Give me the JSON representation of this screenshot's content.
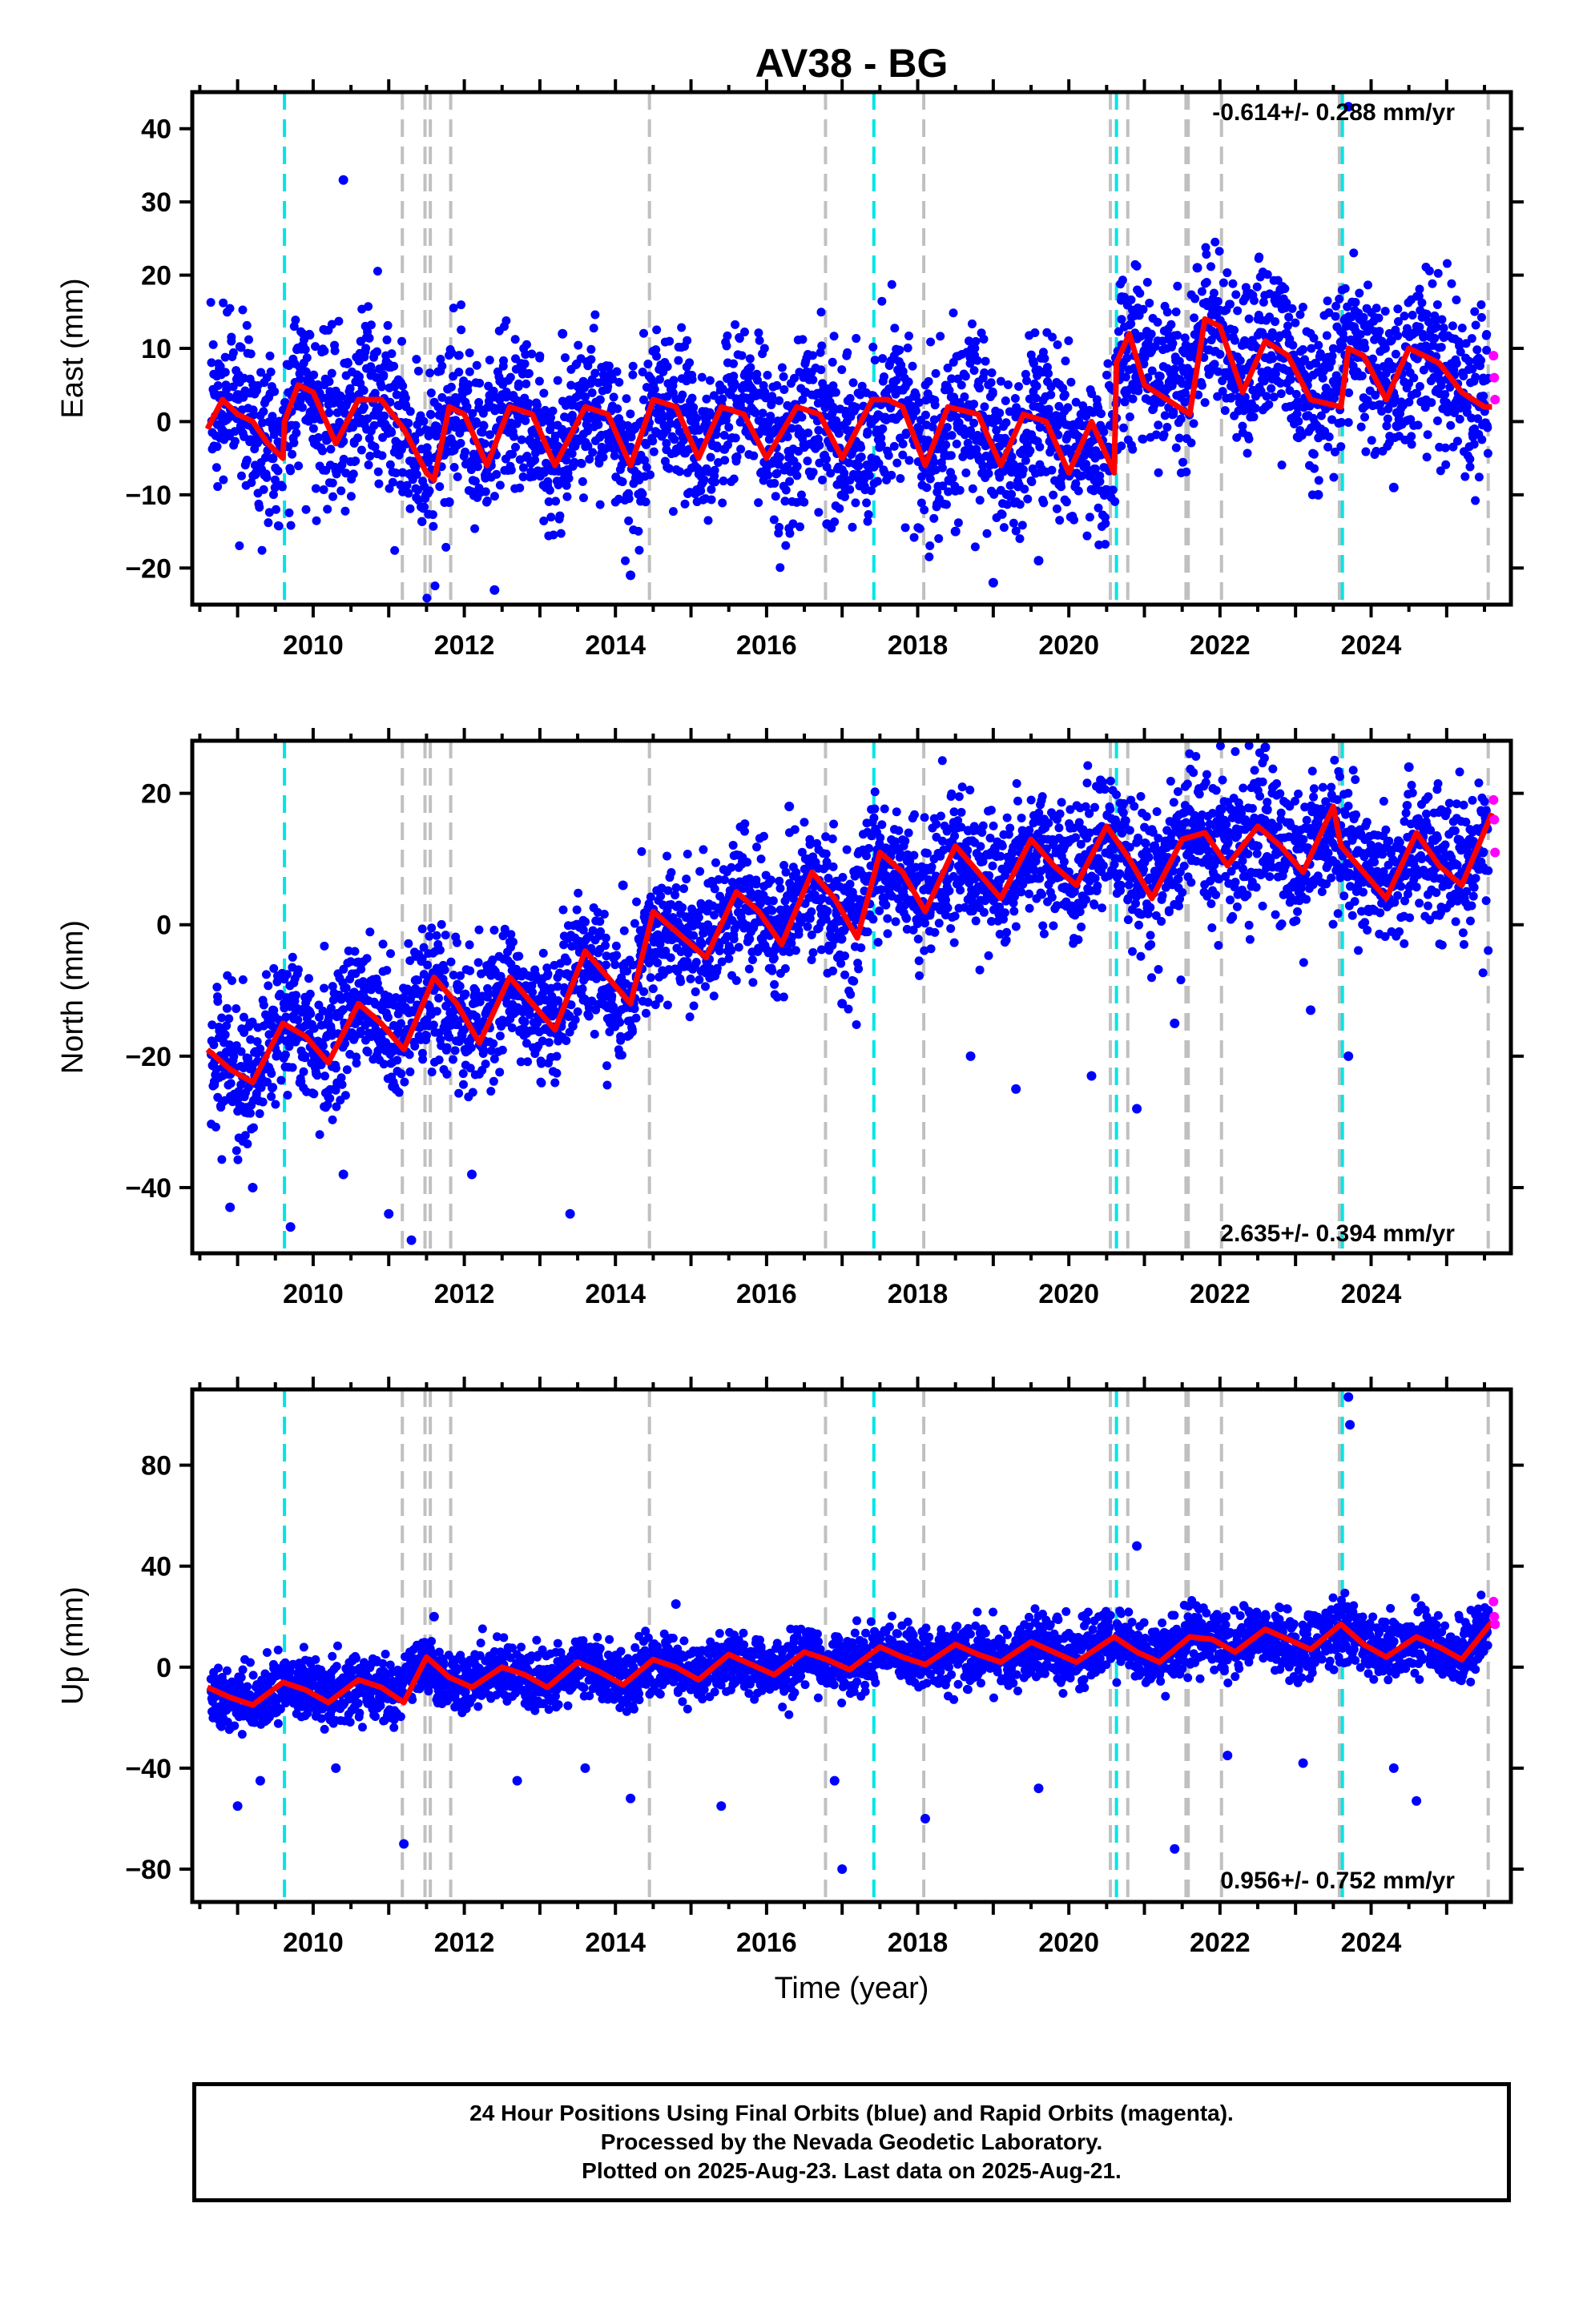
{
  "title": "AV38 - BG",
  "xlabel": "Time (year)",
  "colors": {
    "final_points": "#0000ff",
    "rapid_points": "#ff00ff",
    "model_line": "#ff0000",
    "antenna_change": "#00e5e5",
    "equipment_change": "#c0c0c0"
  },
  "events": {
    "cyan": [
      2009.62,
      2017.42,
      2020.63,
      2023.62
    ],
    "gray": [
      2011.18,
      2011.48,
      2011.55,
      2011.82,
      2014.45,
      2016.78,
      2018.08,
      2020.55,
      2020.78,
      2021.55,
      2021.58,
      2022.02,
      2023.58,
      2025.55
    ]
  },
  "footer": {
    "line1": "24 Hour Positions Using Final Orbits (blue) and Rapid Orbits (magenta).",
    "line2": "Processed by the Nevada Geodetic Laboratory.",
    "line3": "Plotted on 2025-Aug-23. Last data on 2025-Aug-21."
  },
  "chart_data": [
    {
      "type": "scatter",
      "component": "east",
      "ylabel": "East (mm)",
      "rate_text": "-0.614+/- 0.288 mm/yr",
      "xlim": [
        2008.4,
        2025.85
      ],
      "ylim": [
        -25,
        45
      ],
      "yticks": [
        -20,
        -10,
        0,
        10,
        20,
        30,
        40
      ],
      "xticks": [
        2010,
        2012,
        2014,
        2016,
        2018,
        2020,
        2022,
        2024
      ],
      "trend_mm_per_yr": -0.614,
      "seasonal_amplitude_mm": 4.5,
      "model": {
        "x": [
          2008.6,
          2008.8,
          2009.0,
          2009.2,
          2009.4,
          2009.6,
          2009.62,
          2009.8,
          2010.0,
          2010.3,
          2010.6,
          2010.9,
          2011.2,
          2011.5,
          2011.6,
          2011.8,
          2012.0,
          2012.3,
          2012.6,
          2012.9,
          2013.2,
          2013.6,
          2013.9,
          2014.2,
          2014.5,
          2014.8,
          2015.1,
          2015.4,
          2015.7,
          2016.0,
          2016.4,
          2016.7,
          2017.0,
          2017.4,
          2017.6,
          2017.8,
          2018.1,
          2018.4,
          2018.8,
          2019.1,
          2019.4,
          2019.7,
          2020.0,
          2020.3,
          2020.6,
          2020.63,
          2020.8,
          2021.0,
          2021.3,
          2021.6,
          2021.8,
          2022.0,
          2022.3,
          2022.6,
          2022.9,
          2023.2,
          2023.6,
          2023.7,
          2023.9,
          2024.2,
          2024.5,
          2024.9,
          2025.2,
          2025.5,
          2025.6
        ],
        "y": [
          -1,
          3,
          1,
          0,
          -3,
          -5,
          0,
          5,
          4,
          -3,
          3,
          3,
          -1,
          -7,
          -8,
          2,
          1,
          -6,
          2,
          1,
          -6,
          2,
          1,
          -6,
          3,
          2,
          -5,
          2,
          1,
          -5,
          2,
          1,
          -5,
          3,
          3,
          2,
          -6,
          2,
          1,
          -6,
          1,
          0,
          -7,
          0,
          -7,
          8,
          12,
          5,
          3,
          1,
          14,
          13,
          4,
          11,
          9,
          3,
          2,
          10,
          9,
          3,
          10,
          8,
          4,
          2,
          2
        ]
      },
      "final_points": {
        "x": [
          2008.7,
          2008.9,
          2009.1,
          2009.3,
          2009.5,
          2009.7,
          2009.9,
          2010.1,
          2010.3,
          2010.5,
          2010.7,
          2010.9,
          2011.1,
          2011.3,
          2011.5,
          2011.7,
          2011.9,
          2012.1,
          2012.3,
          2012.5,
          2012.7,
          2012.9,
          2013.1,
          2013.3,
          2013.5,
          2013.7,
          2013.9,
          2014.1,
          2014.3,
          2014.5,
          2014.7,
          2014.9,
          2015.1,
          2015.3,
          2015.5,
          2015.7,
          2015.9,
          2016.1,
          2016.3,
          2016.5,
          2016.7,
          2016.9,
          2017.1,
          2017.3,
          2017.5,
          2017.7,
          2017.9,
          2018.1,
          2018.3,
          2018.5,
          2018.7,
          2018.9,
          2019.1,
          2019.3,
          2019.5,
          2019.7,
          2019.9,
          2020.1,
          2020.3,
          2020.5,
          2020.7,
          2020.9,
          2021.1,
          2021.3,
          2021.5,
          2021.7,
          2021.9,
          2022.1,
          2022.3,
          2022.5,
          2022.7,
          2022.9,
          2023.1,
          2023.3,
          2023.5,
          2023.7,
          2023.9,
          2024.1,
          2024.3,
          2024.5,
          2024.7,
          2024.9,
          2025.1,
          2025.3,
          2025.5
        ],
        "y": [
          2,
          3,
          1,
          -2,
          -4,
          3,
          5,
          3,
          -1,
          0,
          4,
          3,
          1,
          -4,
          -7,
          0,
          2,
          -2,
          -4,
          2,
          3,
          1,
          -3,
          -5,
          0,
          2,
          1,
          -4,
          -5,
          2,
          3,
          1,
          -3,
          -4,
          1,
          2,
          1,
          -3,
          -5,
          1,
          2,
          0,
          -3,
          -4,
          2,
          3,
          1,
          -4,
          -5,
          1,
          1,
          -1,
          -5,
          -6,
          0,
          1,
          -1,
          -4,
          -6,
          -6,
          9,
          10,
          6,
          4,
          2,
          12,
          13,
          9,
          5,
          8,
          10,
          8,
          5,
          3,
          6,
          10,
          9,
          7,
          4,
          6,
          9,
          9,
          6,
          3,
          3
        ],
        "outliers_x": [
          2010.4,
          2011.8,
          2012.4,
          2013.3,
          2014.2,
          2016.8,
          2018.5,
          2019.0,
          2019.6,
          2020.7,
          2021.7,
          2022.8,
          2023.3,
          2023.7,
          2024.3
        ],
        "outliers_y": [
          33,
          -11,
          -23,
          12,
          -21,
          -14,
          -15,
          -22,
          -19,
          17,
          21,
          18,
          -10,
          43,
          -9
        ]
      },
      "rapid_points": {
        "x": [
          2025.62,
          2025.63,
          2025.64
        ],
        "y": [
          9,
          6,
          3
        ]
      }
    },
    {
      "type": "scatter",
      "component": "north",
      "ylabel": "North (mm)",
      "rate_text": "2.635+/- 0.394 mm/yr",
      "xlim": [
        2008.4,
        2025.85
      ],
      "ylim": [
        -50,
        28
      ],
      "yticks": [
        -40,
        -20,
        0,
        20
      ],
      "xticks": [
        2010,
        2012,
        2014,
        2016,
        2018,
        2020,
        2022,
        2024
      ],
      "trend_mm_per_yr": 2.635,
      "seasonal_amplitude_mm": 4.0,
      "model": {
        "x": [
          2008.6,
          2008.9,
          2009.2,
          2009.6,
          2009.9,
          2010.2,
          2010.6,
          2010.9,
          2011.2,
          2011.6,
          2011.9,
          2012.2,
          2012.6,
          2012.9,
          2013.2,
          2013.6,
          2013.9,
          2014.2,
          2014.5,
          2014.8,
          2015.2,
          2015.6,
          2015.9,
          2016.2,
          2016.6,
          2016.9,
          2017.2,
          2017.5,
          2017.8,
          2018.1,
          2018.5,
          2018.8,
          2019.1,
          2019.5,
          2019.8,
          2020.1,
          2020.5,
          2020.8,
          2021.1,
          2021.5,
          2021.8,
          2022.1,
          2022.5,
          2022.8,
          2023.1,
          2023.5,
          2023.6,
          2023.9,
          2024.2,
          2024.6,
          2024.9,
          2025.2,
          2025.6
        ],
        "y": [
          -19,
          -22,
          -24,
          -15,
          -17,
          -21,
          -12,
          -15,
          -19,
          -8,
          -12,
          -18,
          -8,
          -12,
          -16,
          -4,
          -8,
          -12,
          2,
          -1,
          -5,
          5,
          2,
          -3,
          8,
          4,
          -2,
          11,
          8,
          2,
          12,
          8,
          4,
          13,
          9,
          6,
          15,
          10,
          4,
          13,
          14,
          9,
          15,
          12,
          8,
          18,
          12,
          8,
          4,
          14,
          9,
          6,
          17
        ]
      },
      "final_points": {
        "x": [
          2008.7,
          2009.0,
          2009.3,
          2009.6,
          2009.9,
          2010.2,
          2010.5,
          2010.8,
          2011.1,
          2011.4,
          2011.7,
          2012.0,
          2012.3,
          2012.6,
          2012.9,
          2013.2,
          2013.5,
          2013.8,
          2014.1,
          2014.4,
          2014.7,
          2015.0,
          2015.3,
          2015.6,
          2015.9,
          2016.2,
          2016.5,
          2016.8,
          2017.1,
          2017.4,
          2017.7,
          2018.0,
          2018.3,
          2018.6,
          2018.9,
          2019.2,
          2019.5,
          2019.8,
          2020.1,
          2020.4,
          2020.7,
          2021.0,
          2021.3,
          2021.6,
          2021.9,
          2022.2,
          2022.5,
          2022.8,
          2023.1,
          2023.4,
          2023.7,
          2024.0,
          2024.3,
          2024.6,
          2024.9,
          2025.2,
          2025.5
        ],
        "y": [
          -20,
          -23,
          -22,
          -14,
          -16,
          -20,
          -14,
          -13,
          -18,
          -11,
          -9,
          -16,
          -14,
          -9,
          -13,
          -15,
          -6,
          -8,
          -12,
          -3,
          0,
          -4,
          -2,
          4,
          1,
          -2,
          6,
          4,
          -1,
          9,
          8,
          3,
          8,
          10,
          6,
          6,
          12,
          9,
          7,
          13,
          12,
          6,
          10,
          14,
          11,
          12,
          15,
          11,
          9,
          14,
          12,
          8,
          6,
          13,
          10,
          8,
          14
        ],
        "outliers_x": [
          2008.9,
          2009.2,
          2009.7,
          2010.4,
          2011.0,
          2011.3,
          2012.1,
          2013.4,
          2014.1,
          2016.3,
          2017.0,
          2018.7,
          2019.3,
          2020.3,
          2020.9,
          2021.4,
          2022.6,
          2023.2,
          2023.7,
          2024.5
        ],
        "outliers_y": [
          -43,
          -40,
          -46,
          -38,
          -44,
          -48,
          -38,
          -44,
          6,
          18,
          -12,
          -20,
          -25,
          -23,
          -28,
          -15,
          27,
          -13,
          -20,
          24
        ]
      },
      "rapid_points": {
        "x": [
          2025.62,
          2025.63,
          2025.64
        ],
        "y": [
          19,
          16,
          11
        ]
      }
    },
    {
      "type": "scatter",
      "component": "up",
      "ylabel": "Up (mm)",
      "rate_text": "0.956+/- 0.752 mm/yr",
      "xlim": [
        2008.4,
        2025.85
      ],
      "ylim": [
        -93,
        110
      ],
      "yticks": [
        -80,
        -40,
        0,
        40,
        80
      ],
      "xticks": [
        2010,
        2012,
        2014,
        2016,
        2018,
        2020,
        2022,
        2024
      ],
      "trend_mm_per_yr": 0.956,
      "seasonal_amplitude_mm": 5.0,
      "model": {
        "x": [
          2008.6,
          2008.9,
          2009.2,
          2009.6,
          2009.9,
          2010.2,
          2010.6,
          2010.9,
          2011.2,
          2011.5,
          2011.8,
          2012.1,
          2012.5,
          2012.8,
          2013.1,
          2013.5,
          2013.8,
          2014.1,
          2014.5,
          2014.8,
          2015.1,
          2015.5,
          2015.8,
          2016.1,
          2016.5,
          2016.8,
          2017.1,
          2017.5,
          2017.8,
          2018.1,
          2018.5,
          2018.8,
          2019.1,
          2019.5,
          2019.8,
          2020.1,
          2020.6,
          2020.9,
          2021.2,
          2021.6,
          2021.9,
          2022.2,
          2022.6,
          2022.9,
          2023.2,
          2023.6,
          2023.9,
          2024.2,
          2024.6,
          2024.9,
          2025.2,
          2025.6
        ],
        "y": [
          -8,
          -12,
          -15,
          -6,
          -9,
          -14,
          -5,
          -8,
          -14,
          4,
          -4,
          -8,
          0,
          -3,
          -8,
          2,
          -2,
          -7,
          3,
          0,
          -5,
          5,
          1,
          -3,
          6,
          3,
          -1,
          8,
          4,
          1,
          9,
          5,
          2,
          10,
          6,
          2,
          12,
          6,
          2,
          12,
          11,
          6,
          15,
          11,
          7,
          17,
          9,
          4,
          12,
          8,
          3,
          18
        ]
      },
      "final_points": {
        "x": [
          2008.7,
          2009.0,
          2009.3,
          2009.6,
          2009.9,
          2010.2,
          2010.5,
          2010.8,
          2011.1,
          2011.4,
          2011.7,
          2012.0,
          2012.3,
          2012.6,
          2012.9,
          2013.2,
          2013.5,
          2013.8,
          2014.1,
          2014.4,
          2014.7,
          2015.0,
          2015.3,
          2015.6,
          2015.9,
          2016.2,
          2016.5,
          2016.8,
          2017.1,
          2017.4,
          2017.7,
          2018.0,
          2018.3,
          2018.6,
          2018.9,
          2019.2,
          2019.5,
          2019.8,
          2020.1,
          2020.4,
          2020.7,
          2021.0,
          2021.3,
          2021.6,
          2021.9,
          2022.2,
          2022.5,
          2022.8,
          2023.1,
          2023.4,
          2023.7,
          2024.0,
          2024.3,
          2024.6,
          2024.9,
          2025.2,
          2025.5
        ],
        "y": [
          -10,
          -14,
          -12,
          -8,
          -7,
          -13,
          -8,
          -6,
          -12,
          2,
          -3,
          -7,
          -2,
          -1,
          -6,
          -4,
          1,
          -1,
          -5,
          0,
          2,
          -3,
          0,
          3,
          -1,
          -2,
          4,
          2,
          0,
          5,
          6,
          2,
          4,
          7,
          4,
          3,
          8,
          7,
          4,
          9,
          10,
          5,
          5,
          12,
          9,
          8,
          14,
          10,
          8,
          13,
          14,
          8,
          6,
          11,
          8,
          6,
          15
        ],
        "outliers_x": [
          2009.0,
          2009.3,
          2010.3,
          2011.2,
          2011.6,
          2012.7,
          2013.6,
          2014.2,
          2014.8,
          2015.4,
          2016.9,
          2017.0,
          2018.1,
          2019.6,
          2020.9,
          2021.4,
          2022.1,
          2023.1,
          2023.7,
          2023.72,
          2024.3,
          2024.6
        ],
        "outliers_y": [
          -55,
          -45,
          -40,
          -70,
          20,
          -45,
          -40,
          -52,
          25,
          -55,
          -45,
          -80,
          -60,
          -48,
          48,
          -72,
          -35,
          -38,
          107,
          96,
          -40,
          -53
        ]
      },
      "rapid_points": {
        "x": [
          2025.62,
          2025.63,
          2025.64
        ],
        "y": [
          26,
          20,
          17
        ]
      }
    }
  ]
}
